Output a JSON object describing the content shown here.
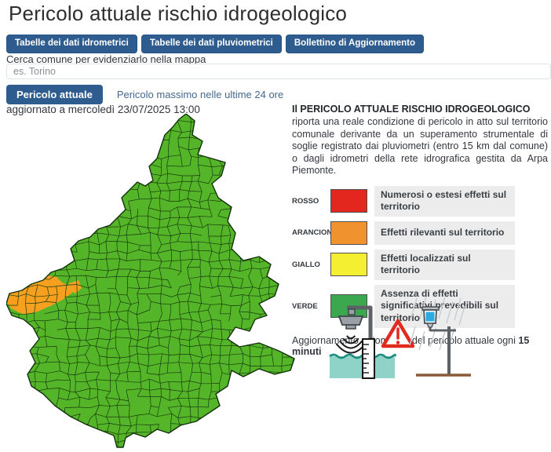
{
  "page": {
    "title": "Pericolo attuale rischio idrogeologico"
  },
  "toolbar": {
    "buttons": [
      {
        "label": "Tabelle dei dati idrometrici"
      },
      {
        "label": "Tabelle dei dati pluviometrici"
      },
      {
        "label": "Bollettino di Aggiornamento"
      }
    ]
  },
  "search": {
    "label": "Cerca comune per evidenziarlo nella mappa",
    "placeholder": "es. Torino",
    "value": ""
  },
  "tabs": {
    "active": "Pericolo attuale",
    "inactive": "Pericolo massimo nelle ultime 24 ore"
  },
  "updated": "aggiornato a mercoledì 23/07/2025 13:00",
  "info": {
    "heading": "Il PERICOLO ATTUALE RISCHIO IDROGEOLOGICO",
    "body": "riporta una reale condizione di pericolo in atto sul territorio comunale derivante da un superamento strumentale di soglie registrato dai pluviometri (entro 15 km dal comune) o dagli idrometri della rete idrografica gestita da Arpa Piemonte."
  },
  "legend": {
    "items": [
      {
        "label": "ROSSO",
        "color": "#e3271e",
        "text": "Numerosi o estesi effetti sul territorio"
      },
      {
        "label": "ARANCIONE",
        "color": "#f0932f",
        "text": "Effetti rilevanti sul territorio"
      },
      {
        "label": "GIALLO",
        "color": "#f5ef31",
        "text": "Effetti localizzati sul territorio"
      },
      {
        "label": "VERDE",
        "color": "#3ba850",
        "text": "Assenza di effetti significativi prevedibili sul territorio"
      }
    ]
  },
  "refresh_note": {
    "prefix": "Aggiornamento automatico  del pericolo attuale ogni ",
    "bold": "15 minuti"
  },
  "map": {
    "name": "Mappa dei comuni del Piemonte",
    "colors": {
      "green": "#55b529",
      "orange": "#f79f1f",
      "border": "#173a0e"
    },
    "status": "comuni in verde; alcuni comuni in arancione nel nord-ovest"
  },
  "illustration": {
    "icons": [
      "water-level-sensor-icon",
      "warning-triangle-icon",
      "rain-gauge-icon"
    ],
    "colors": {
      "water": "#8fd2c8",
      "wave": "#1e8d80",
      "alert": "#e02b20",
      "gauge_blue": "#2aabe2",
      "ground": "#8a5a3b"
    }
  }
}
